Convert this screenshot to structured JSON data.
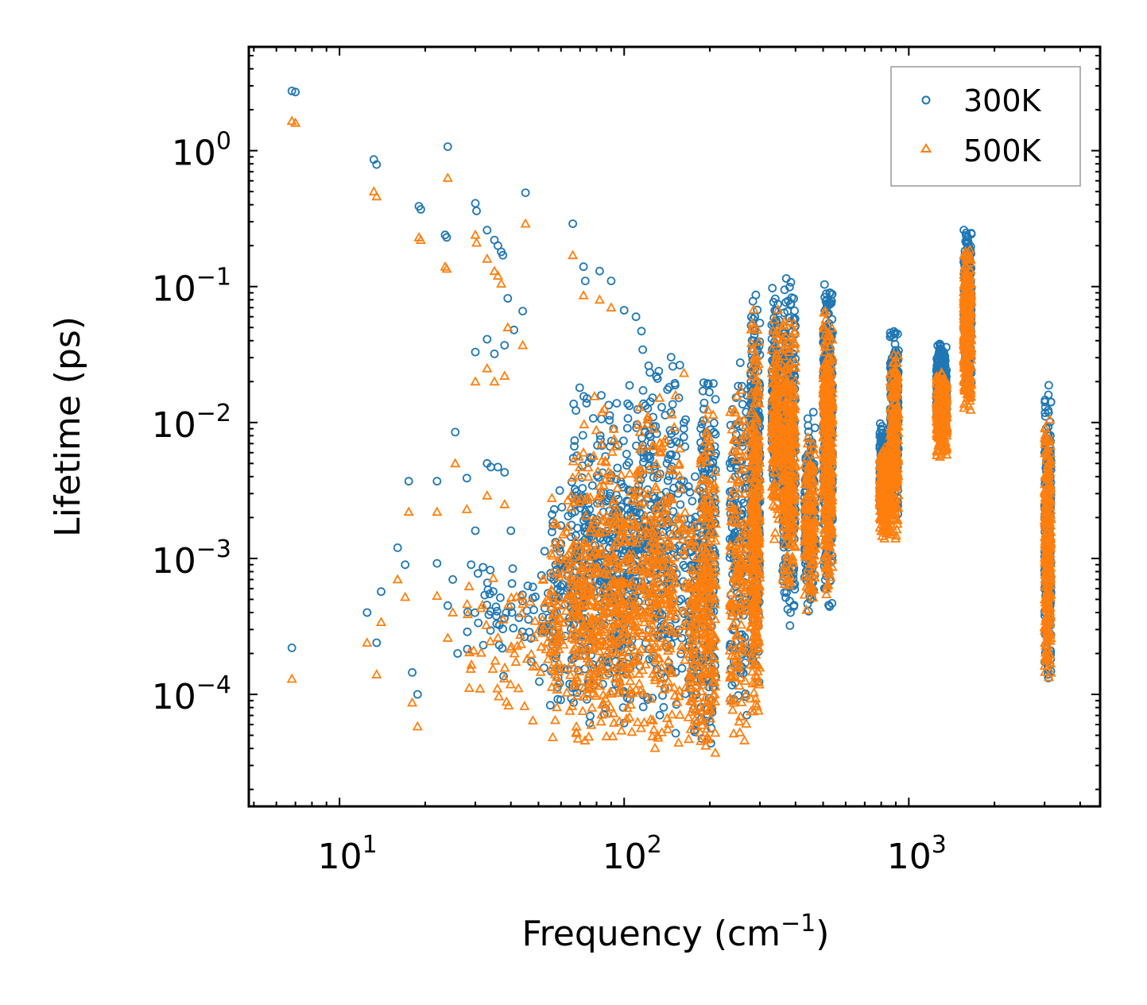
{
  "chart_data": {
    "type": "scatter",
    "xscale": "log",
    "yscale": "log",
    "xlim": [
      4.8,
      4700
    ],
    "ylim": [
      1.5e-05,
      5.8
    ],
    "xlabel": {
      "text": "Frequency (cm",
      "sup": "−1",
      "suffix": ")"
    },
    "ylabel": "Lifetime (ps)",
    "xticks": [
      {
        "value": 10,
        "base": "10",
        "exp": "1"
      },
      {
        "value": 100,
        "base": "10",
        "exp": "2"
      },
      {
        "value": 1000,
        "base": "10",
        "exp": "3"
      }
    ],
    "yticks": [
      {
        "value": 1,
        "base": "10",
        "exp": "0"
      },
      {
        "value": 0.1,
        "base": "10",
        "exp": "−1"
      },
      {
        "value": 0.01,
        "base": "10",
        "exp": "−2"
      },
      {
        "value": 0.001,
        "base": "10",
        "exp": "−3"
      },
      {
        "value": 0.0001,
        "base": "10",
        "exp": "−4"
      }
    ],
    "legend": {
      "position": "top-right"
    },
    "series": [
      {
        "name": "300K",
        "marker": "circle",
        "color": "#1f77b4",
        "points": [
          [
            6.8,
            2.75
          ],
          [
            7.0,
            2.7
          ],
          [
            6.8,
            0.00022
          ],
          [
            13.2,
            0.86
          ],
          [
            13.5,
            0.79
          ],
          [
            19.0,
            0.39
          ],
          [
            19.3,
            0.37
          ],
          [
            23.5,
            0.24
          ],
          [
            23.8,
            0.23
          ],
          [
            24.0,
            1.07
          ],
          [
            30.0,
            0.41
          ],
          [
            30.3,
            0.36
          ],
          [
            33.0,
            0.26
          ],
          [
            35.0,
            0.22
          ],
          [
            36.0,
            0.2
          ],
          [
            37.0,
            0.18
          ],
          [
            37.5,
            0.17
          ],
          [
            39.0,
            0.082
          ],
          [
            41.0,
            0.048
          ],
          [
            44.0,
            0.066
          ],
          [
            45.0,
            0.49
          ],
          [
            66.0,
            0.29
          ],
          [
            72.0,
            0.14
          ],
          [
            73.0,
            0.11
          ],
          [
            82.0,
            0.13
          ],
          [
            90.0,
            0.11
          ],
          [
            100.0,
            0.067
          ],
          [
            110.0,
            0.06
          ],
          [
            115.0,
            0.047
          ],
          [
            12.5,
            0.0004
          ],
          [
            13.5,
            0.00024
          ],
          [
            14.0,
            0.00057
          ],
          [
            16.0,
            0.0012
          ],
          [
            17.0,
            0.0009
          ],
          [
            17.5,
            0.0037
          ],
          [
            18.0,
            0.000145
          ],
          [
            18.8,
            0.0001
          ],
          [
            22.0,
            0.0037
          ],
          [
            22.0,
            0.00092
          ],
          [
            24.0,
            0.00045
          ],
          [
            25.0,
            0.0007
          ],
          [
            26.0,
            0.0002
          ],
          [
            25.5,
            0.0085
          ],
          [
            28.0,
            0.0039
          ],
          [
            29.0,
            0.0009
          ],
          [
            30.0,
            0.0016
          ],
          [
            30.0,
            0.033
          ],
          [
            32.0,
            0.00023
          ],
          [
            33.0,
            0.005
          ],
          [
            33.0,
            0.041
          ],
          [
            34.0,
            0.0047
          ],
          [
            35.0,
            0.032
          ],
          [
            36.0,
            0.0047
          ],
          [
            38.0,
            0.0043
          ],
          [
            38.0,
            0.037
          ],
          [
            40.0,
            0.0016
          ]
        ],
        "clusters": [
          {
            "fmin": 28,
            "fmax": 60,
            "lmin": 0.0001,
            "lmax": 0.0015,
            "n": 70
          },
          {
            "fmin": 55,
            "fmax": 110,
            "lmin": 7e-05,
            "lmax": 0.006,
            "n": 320
          },
          {
            "fmin": 65,
            "fmax": 150,
            "lmin": 5e-05,
            "lmax": 0.03,
            "n": 360
          },
          {
            "fmin": 110,
            "fmax": 165,
            "lmin": 4e-05,
            "lmax": 0.04,
            "n": 180
          },
          {
            "fmin": 168,
            "fmax": 182,
            "lmin": 4e-05,
            "lmax": 0.006,
            "n": 90
          },
          {
            "fmin": 185,
            "fmax": 210,
            "lmin": 3e-05,
            "lmax": 0.03,
            "n": 230
          },
          {
            "fmin": 235,
            "fmax": 270,
            "lmin": 5e-05,
            "lmax": 0.037,
            "n": 160
          },
          {
            "fmin": 278,
            "fmax": 300,
            "lmin": 9e-05,
            "lmax": 0.13,
            "n": 320
          },
          {
            "fmin": 330,
            "fmax": 350,
            "lmin": 0.002,
            "lmax": 0.12,
            "n": 160
          },
          {
            "fmin": 360,
            "fmax": 400,
            "lmin": 0.0003,
            "lmax": 0.13,
            "n": 320
          },
          {
            "fmin": 430,
            "fmax": 470,
            "lmin": 0.0003,
            "lmax": 0.013,
            "n": 150
          },
          {
            "fmin": 500,
            "fmax": 540,
            "lmin": 0.0004,
            "lmax": 0.14,
            "n": 380
          },
          {
            "fmin": 790,
            "fmax": 850,
            "lmin": 0.0019,
            "lmax": 0.01,
            "n": 250
          },
          {
            "fmin": 860,
            "fmax": 920,
            "lmin": 0.0017,
            "lmax": 0.062,
            "n": 260
          },
          {
            "fmin": 1250,
            "fmax": 1360,
            "lmin": 0.007,
            "lmax": 0.042,
            "n": 320
          },
          {
            "fmin": 1560,
            "fmax": 1660,
            "lmin": 0.016,
            "lmax": 0.32,
            "n": 300
          },
          {
            "fmin": 3000,
            "fmax": 3160,
            "lmin": 0.00011,
            "lmax": 0.021,
            "n": 320
          }
        ]
      },
      {
        "name": "500K",
        "marker": "triangle",
        "color": "#ff7f0e",
        "points": [
          [
            6.8,
            1.65
          ],
          [
            7.0,
            1.6
          ],
          [
            6.8,
            0.00013
          ],
          [
            13.2,
            0.5
          ],
          [
            13.5,
            0.46
          ],
          [
            19.0,
            0.23
          ],
          [
            19.3,
            0.22
          ],
          [
            23.5,
            0.14
          ],
          [
            23.8,
            0.135
          ],
          [
            24.0,
            0.63
          ],
          [
            30.0,
            0.24
          ],
          [
            30.3,
            0.21
          ],
          [
            33.0,
            0.16
          ],
          [
            35.0,
            0.13
          ],
          [
            36.0,
            0.12
          ],
          [
            37.0,
            0.105
          ],
          [
            39.0,
            0.05
          ],
          [
            44.0,
            0.037
          ],
          [
            45.0,
            0.29
          ],
          [
            66.0,
            0.17
          ],
          [
            72.0,
            0.086
          ],
          [
            82.0,
            0.08
          ],
          [
            90.0,
            0.07
          ],
          [
            12.5,
            0.00024
          ],
          [
            13.5,
            0.00014
          ],
          [
            14.0,
            0.00034
          ],
          [
            16.0,
            0.0007
          ],
          [
            17.0,
            0.00052
          ],
          [
            17.5,
            0.0022
          ],
          [
            18.0,
            8.7e-05
          ],
          [
            18.8,
            5.8e-05
          ],
          [
            22.0,
            0.0022
          ],
          [
            22.0,
            0.00053
          ],
          [
            24.0,
            0.00026
          ],
          [
            25.0,
            0.0004
          ],
          [
            25.5,
            0.005
          ],
          [
            28.0,
            0.0023
          ],
          [
            30.0,
            0.02
          ],
          [
            33.0,
            0.0029
          ],
          [
            33.0,
            0.025
          ],
          [
            35.0,
            0.02
          ],
          [
            38.0,
            0.0025
          ],
          [
            38.0,
            0.022
          ]
        ],
        "clusters": [
          {
            "fmin": 28,
            "fmax": 60,
            "lmin": 6e-05,
            "lmax": 0.0009,
            "n": 70
          },
          {
            "fmin": 55,
            "fmax": 110,
            "lmin": 4e-05,
            "lmax": 0.0035,
            "n": 320
          },
          {
            "fmin": 65,
            "fmax": 150,
            "lmin": 3e-05,
            "lmax": 0.018,
            "n": 360
          },
          {
            "fmin": 110,
            "fmax": 165,
            "lmin": 2.8e-05,
            "lmax": 0.024,
            "n": 180
          },
          {
            "fmin": 168,
            "fmax": 182,
            "lmin": 2.5e-05,
            "lmax": 0.0035,
            "n": 90
          },
          {
            "fmin": 185,
            "fmax": 210,
            "lmin": 2.5e-05,
            "lmax": 0.018,
            "n": 230
          },
          {
            "fmin": 235,
            "fmax": 270,
            "lmin": 3e-05,
            "lmax": 0.022,
            "n": 160
          },
          {
            "fmin": 278,
            "fmax": 300,
            "lmin": 5e-05,
            "lmax": 0.075,
            "n": 320
          },
          {
            "fmin": 330,
            "fmax": 350,
            "lmin": 0.0012,
            "lmax": 0.07,
            "n": 160
          },
          {
            "fmin": 360,
            "fmax": 400,
            "lmin": 0.0005,
            "lmax": 0.075,
            "n": 320
          },
          {
            "fmin": 430,
            "fmax": 470,
            "lmin": 0.0004,
            "lmax": 0.0085,
            "n": 150
          },
          {
            "fmin": 500,
            "fmax": 540,
            "lmin": 0.0005,
            "lmax": 0.085,
            "n": 380
          },
          {
            "fmin": 790,
            "fmax": 850,
            "lmin": 0.0013,
            "lmax": 0.007,
            "n": 250
          },
          {
            "fmin": 860,
            "fmax": 920,
            "lmin": 0.0013,
            "lmax": 0.04,
            "n": 260
          },
          {
            "fmin": 1250,
            "fmax": 1360,
            "lmin": 0.0055,
            "lmax": 0.025,
            "n": 320
          },
          {
            "fmin": 1560,
            "fmax": 1660,
            "lmin": 0.012,
            "lmax": 0.2,
            "n": 300
          },
          {
            "fmin": 3000,
            "fmax": 3160,
            "lmin": 0.0001,
            "lmax": 0.013,
            "n": 320
          }
        ]
      }
    ]
  }
}
